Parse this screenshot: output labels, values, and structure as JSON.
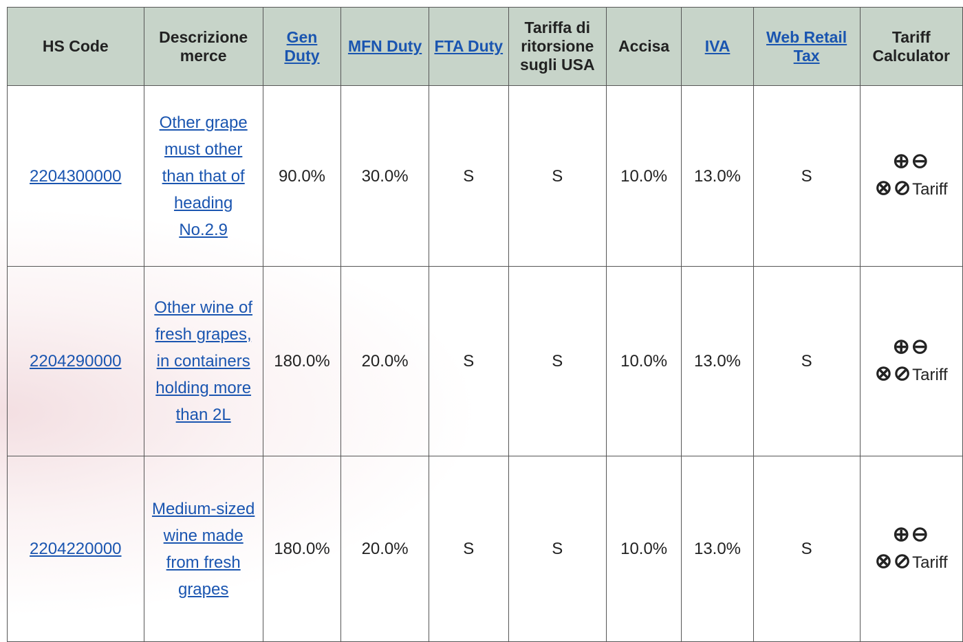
{
  "table": {
    "headers": [
      {
        "text": "HS Code",
        "link": false
      },
      {
        "text": "Descrizione merce",
        "link": false
      },
      {
        "text": "Gen Duty",
        "link": true
      },
      {
        "text": "MFN Duty",
        "link": true
      },
      {
        "text": "FTA Duty",
        "link": true
      },
      {
        "text": "Tariffa di ritorsione sugli USA",
        "link": false
      },
      {
        "text": "Accisa",
        "link": false
      },
      {
        "text": "IVA",
        "link": true
      },
      {
        "text": "Web Retail Tax",
        "link": true
      },
      {
        "text": "Tariff Calculator",
        "link": false
      }
    ],
    "coin_letter": "S",
    "calculator_label": "Tariff",
    "rows": [
      {
        "hs_code": "2204300000",
        "description": "Other grape must other than that of heading No.2.9",
        "gen_duty": "90.0%",
        "mfn_duty": "30.0%",
        "accisa": "10.0%",
        "iva": "13.0%"
      },
      {
        "hs_code": "2204290000",
        "description": "Other wine of fresh grapes, in containers holding more than 2L",
        "gen_duty": "180.0%",
        "mfn_duty": "20.0%",
        "accisa": "10.0%",
        "iva": "13.0%"
      },
      {
        "hs_code": "2204220000",
        "description": "Medium-sized wine made from fresh grapes",
        "gen_duty": "180.0%",
        "mfn_duty": "20.0%",
        "accisa": "10.0%",
        "iva": "13.0%"
      }
    ]
  }
}
